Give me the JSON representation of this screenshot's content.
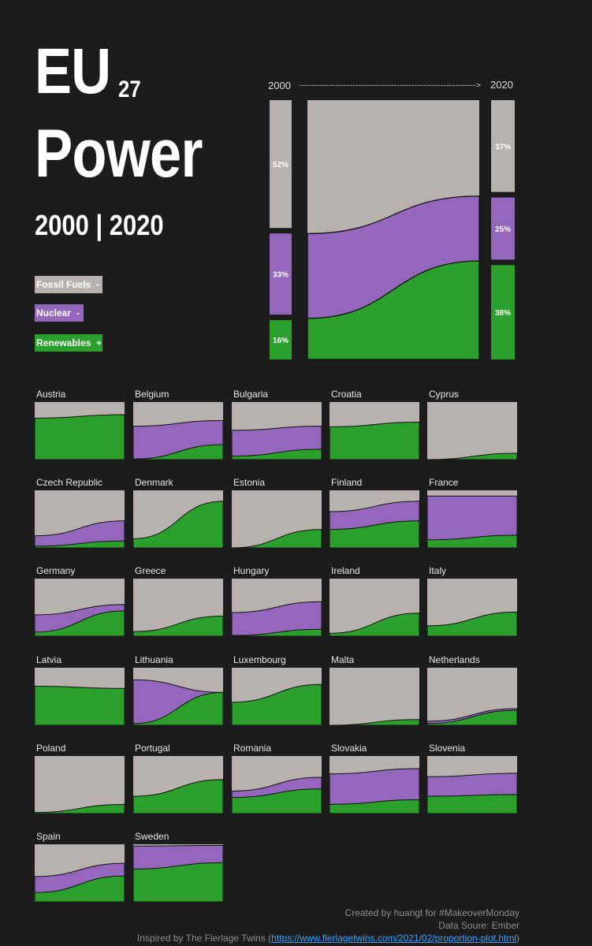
{
  "header": {
    "title_main": "EU",
    "title_superscript": "27",
    "title_second": "Power",
    "subtitle": "2000 | 2020"
  },
  "legend": [
    {
      "label": "Fossil Fuels",
      "trend": "-",
      "color": "#b9b1ad"
    },
    {
      "label": "Nuclear",
      "trend": "-",
      "color": "#9467bd"
    },
    {
      "label": "Renewables",
      "trend": "+",
      "color": "#2ca02c"
    }
  ],
  "colors": {
    "fossil": "#b9b1ad",
    "nuclear": "#9467bd",
    "renewables": "#2ca02c",
    "background": "#1c1c1c"
  },
  "main_chart": {
    "start_label": "2000",
    "end_label": "2020",
    "arrow": "------------------------------------------------------------>"
  },
  "chart_data": {
    "type": "area",
    "title": "EU 27 Power 2000 | 2020",
    "x": [
      2000,
      2020
    ],
    "series_order": [
      "Renewables",
      "Nuclear",
      "Fossil Fuels"
    ],
    "eu27": {
      "start": {
        "fossil": 52,
        "nuclear": 33,
        "renewables": 16
      },
      "end": {
        "fossil": 37,
        "nuclear": 25,
        "renewables": 38
      },
      "labels_start": {
        "fossil": "52%",
        "nuclear": "33%",
        "renewables": "16%"
      },
      "labels_end": {
        "fossil": "37%",
        "nuclear": "25%",
        "renewables": "38%"
      }
    },
    "countries": [
      {
        "name": "Austria",
        "start": {
          "renewables": 72,
          "nuclear": 0
        },
        "end": {
          "renewables": 78,
          "nuclear": 0
        }
      },
      {
        "name": "Belgium",
        "start": {
          "renewables": 1,
          "nuclear": 57
        },
        "end": {
          "renewables": 26,
          "nuclear": 42
        }
      },
      {
        "name": "Bulgaria",
        "start": {
          "renewables": 6,
          "nuclear": 45
        },
        "end": {
          "renewables": 18,
          "nuclear": 40
        }
      },
      {
        "name": "Croatia",
        "start": {
          "renewables": 57,
          "nuclear": 0
        },
        "end": {
          "renewables": 65,
          "nuclear": 0
        }
      },
      {
        "name": "Cyprus",
        "start": {
          "renewables": 0,
          "nuclear": 0
        },
        "end": {
          "renewables": 11,
          "nuclear": 0
        }
      },
      {
        "name": "Czech Republic",
        "start": {
          "renewables": 3,
          "nuclear": 18
        },
        "end": {
          "renewables": 12,
          "nuclear": 35
        }
      },
      {
        "name": "Denmark",
        "start": {
          "renewables": 16,
          "nuclear": 0
        },
        "end": {
          "renewables": 81,
          "nuclear": 0
        }
      },
      {
        "name": "Estonia",
        "start": {
          "renewables": 0,
          "nuclear": 0
        },
        "end": {
          "renewables": 32,
          "nuclear": 0
        }
      },
      {
        "name": "Finland",
        "start": {
          "renewables": 32,
          "nuclear": 31
        },
        "end": {
          "renewables": 47,
          "nuclear": 34
        }
      },
      {
        "name": "France",
        "start": {
          "renewables": 14,
          "nuclear": 76
        },
        "end": {
          "renewables": 22,
          "nuclear": 68
        }
      },
      {
        "name": "Germany",
        "start": {
          "renewables": 7,
          "nuclear": 30
        },
        "end": {
          "renewables": 44,
          "nuclear": 11
        }
      },
      {
        "name": "Greece",
        "start": {
          "renewables": 8,
          "nuclear": 0
        },
        "end": {
          "renewables": 35,
          "nuclear": 0
        }
      },
      {
        "name": "Hungary",
        "start": {
          "renewables": 1,
          "nuclear": 40
        },
        "end": {
          "renewables": 12,
          "nuclear": 48
        }
      },
      {
        "name": "Ireland",
        "start": {
          "renewables": 5,
          "nuclear": 0
        },
        "end": {
          "renewables": 40,
          "nuclear": 0
        }
      },
      {
        "name": "Italy",
        "start": {
          "renewables": 18,
          "nuclear": 0
        },
        "end": {
          "renewables": 42,
          "nuclear": 0
        }
      },
      {
        "name": "Latvia",
        "start": {
          "renewables": 68,
          "nuclear": 0
        },
        "end": {
          "renewables": 64,
          "nuclear": 0
        }
      },
      {
        "name": "Lithuania",
        "start": {
          "renewables": 3,
          "nuclear": 76
        },
        "end": {
          "renewables": 57,
          "nuclear": 0
        }
      },
      {
        "name": "Luxembourg",
        "start": {
          "renewables": 40,
          "nuclear": 0
        },
        "end": {
          "renewables": 71,
          "nuclear": 0
        }
      },
      {
        "name": "Malta",
        "start": {
          "renewables": 0,
          "nuclear": 0
        },
        "end": {
          "renewables": 10,
          "nuclear": 0
        }
      },
      {
        "name": "Netherlands",
        "start": {
          "renewables": 3,
          "nuclear": 4
        },
        "end": {
          "renewables": 26,
          "nuclear": 3
        }
      },
      {
        "name": "Poland",
        "start": {
          "renewables": 2,
          "nuclear": 0
        },
        "end": {
          "renewables": 16,
          "nuclear": 0
        }
      },
      {
        "name": "Portugal",
        "start": {
          "renewables": 30,
          "nuclear": 0
        },
        "end": {
          "renewables": 59,
          "nuclear": 0
        }
      },
      {
        "name": "Romania",
        "start": {
          "renewables": 28,
          "nuclear": 11
        },
        "end": {
          "renewables": 43,
          "nuclear": 20
        }
      },
      {
        "name": "Slovakia",
        "start": {
          "renewables": 16,
          "nuclear": 53
        },
        "end": {
          "renewables": 24,
          "nuclear": 54
        }
      },
      {
        "name": "Slovenia",
        "start": {
          "renewables": 30,
          "nuclear": 34
        },
        "end": {
          "renewables": 33,
          "nuclear": 37
        }
      },
      {
        "name": "Spain",
        "start": {
          "renewables": 16,
          "nuclear": 28
        },
        "end": {
          "renewables": 45,
          "nuclear": 22
        }
      },
      {
        "name": "Sweden",
        "start": {
          "renewables": 57,
          "nuclear": 40
        },
        "end": {
          "renewables": 68,
          "nuclear": 30
        }
      }
    ]
  },
  "footer": {
    "credit": "Created by huangt for #MakeoverMonday",
    "data_source": "Data Soure: Ember",
    "inspired_prefix": "Inspired by The Flerlage Twins (",
    "inspired_link": "https://www.flerlagetwins.com/2021/02/proportion-plot.html",
    "inspired_suffix": ")"
  }
}
